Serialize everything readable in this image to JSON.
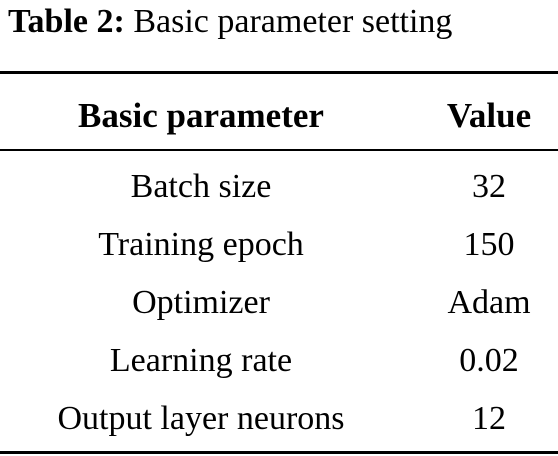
{
  "table": {
    "caption_label": "Table 2:",
    "caption_text": "Basic parameter setting",
    "headers": [
      "Basic parameter",
      "Value"
    ],
    "rows": [
      [
        "Batch size",
        "32"
      ],
      [
        "Training epoch",
        "150"
      ],
      [
        "Optimizer",
        "Adam"
      ],
      [
        "Learning rate",
        "0.02"
      ],
      [
        "Output layer neurons",
        "12"
      ]
    ]
  }
}
